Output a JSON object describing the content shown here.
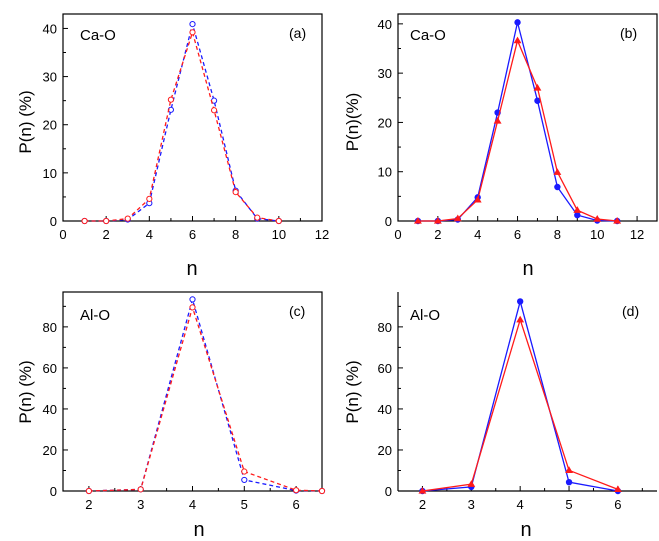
{
  "colors": {
    "blue": "#1a1aff",
    "red": "#ff1a1a",
    "axis": "#000000"
  },
  "chart_data": [
    {
      "panel_label": "(a)",
      "series_label": "Ca-O",
      "type": "line",
      "line_style": "dashed",
      "marker": "open-circle",
      "xlabel": "n",
      "ylabel": "P(n) (%)",
      "xlim": [
        0,
        12
      ],
      "ylim": [
        0,
        43
      ],
      "xticks": [
        0,
        2,
        4,
        6,
        8,
        10,
        12
      ],
      "yticks": [
        0,
        10,
        20,
        30,
        40
      ],
      "series": [
        {
          "color": "blue",
          "x": [
            1,
            2,
            3,
            4,
            5,
            6,
            7,
            8,
            9,
            10
          ],
          "y": [
            0,
            0,
            0.3,
            3.7,
            23.1,
            40.9,
            25.0,
            6.3,
            0.5,
            0
          ]
        },
        {
          "color": "red",
          "x": [
            1,
            2,
            3,
            4,
            5,
            6,
            7,
            8,
            9,
            10
          ],
          "y": [
            0,
            0,
            0.5,
            4.6,
            25.2,
            39.2,
            23.0,
            6.0,
            0.7,
            0
          ]
        }
      ]
    },
    {
      "panel_label": "(b)",
      "series_label": "Ca-O",
      "type": "line",
      "line_style": "solid",
      "marker": "filled",
      "xlabel": "n",
      "ylabel": "P(n)(%)",
      "xlim": [
        0,
        13
      ],
      "ylim": [
        0,
        42
      ],
      "xticks": [
        0,
        2,
        4,
        6,
        8,
        10,
        12
      ],
      "yticks": [
        0,
        10,
        20,
        30,
        40
      ],
      "series": [
        {
          "color": "blue",
          "x": [
            1,
            2,
            3,
            4,
            5,
            6,
            7,
            8,
            9,
            10,
            11
          ],
          "y": [
            0,
            0,
            0.3,
            4.8,
            22.0,
            40.3,
            24.4,
            6.9,
            1.2,
            0.1,
            0
          ]
        },
        {
          "color": "red",
          "x": [
            1,
            2,
            3,
            4,
            5,
            6,
            7,
            8,
            9,
            10,
            11
          ],
          "y": [
            0,
            0,
            0.5,
            4.3,
            20.3,
            36.6,
            27.0,
            9.9,
            2.2,
            0.4,
            0
          ]
        }
      ]
    },
    {
      "panel_label": "(c)",
      "series_label": "Al-O",
      "type": "line",
      "line_style": "dashed",
      "marker": "open-circle",
      "xlabel": "n",
      "ylabel": "P(n) (%)",
      "xlim": [
        1.5,
        6.5
      ],
      "ylim": [
        0,
        97
      ],
      "xticks": [
        2,
        3,
        4,
        5,
        6
      ],
      "yticks": [
        0,
        20,
        40,
        60,
        80
      ],
      "series": [
        {
          "color": "blue",
          "x": [
            2,
            3,
            4,
            5,
            6,
            6.5
          ],
          "y": [
            0,
            0.8,
            93.4,
            5.4,
            0.2,
            0
          ]
        },
        {
          "color": "red",
          "x": [
            2,
            3,
            4,
            5,
            6,
            6.5
          ],
          "y": [
            0,
            0.8,
            89.5,
            9.5,
            0.4,
            0
          ]
        }
      ]
    },
    {
      "panel_label": "(d)",
      "series_label": "Al-O",
      "type": "line",
      "line_style": "solid",
      "marker": "filled",
      "xlabel": "n",
      "ylabel": "P(n) (%)",
      "xlim": [
        1.5,
        6.8
      ],
      "ylim": [
        0,
        97
      ],
      "xticks": [
        2,
        3,
        4,
        5,
        6
      ],
      "yticks": [
        0,
        20,
        40,
        60,
        80
      ],
      "series": [
        {
          "color": "blue",
          "x": [
            2,
            3,
            4,
            5,
            6
          ],
          "y": [
            0,
            2.0,
            92.4,
            4.3,
            0
          ]
        },
        {
          "color": "red",
          "x": [
            2,
            3,
            4,
            5,
            6
          ],
          "y": [
            0,
            3.3,
            83.5,
            10.1,
            0.8
          ]
        }
      ]
    }
  ]
}
